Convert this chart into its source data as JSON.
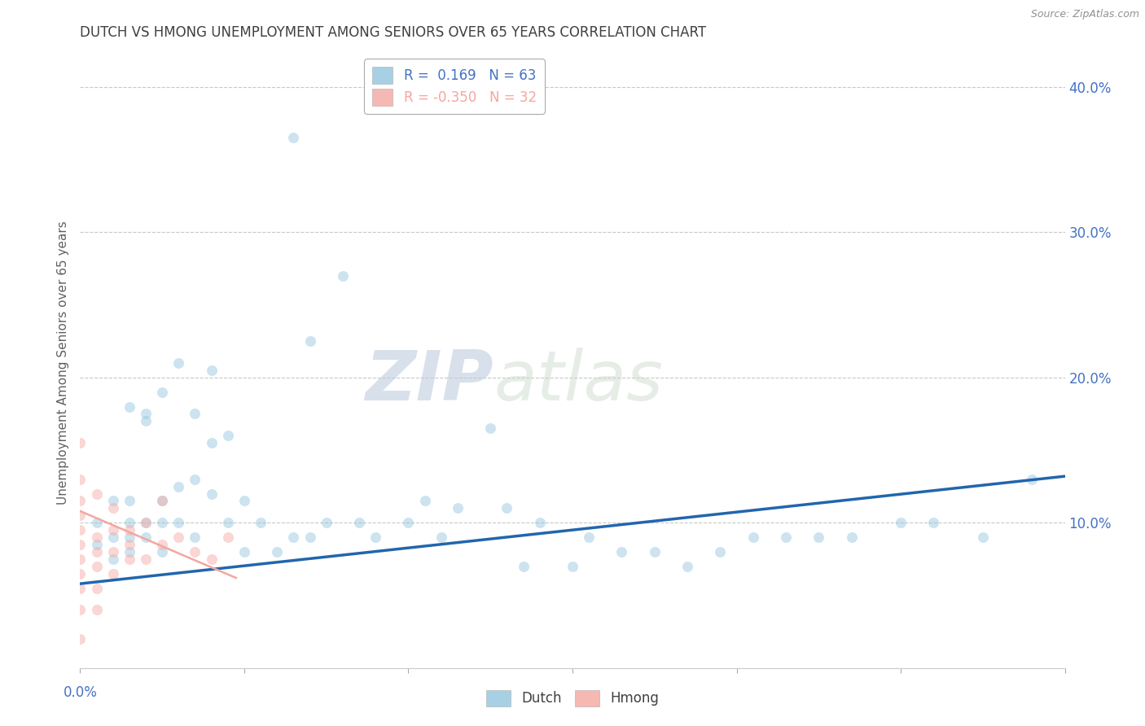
{
  "title": "DUTCH VS HMONG UNEMPLOYMENT AMONG SENIORS OVER 65 YEARS CORRELATION CHART",
  "source": "Source: ZipAtlas.com",
  "ylabel": "Unemployment Among Seniors over 65 years",
  "xlim": [
    0.0,
    0.6
  ],
  "ylim": [
    0.0,
    0.42
  ],
  "yticks": [
    0.0,
    0.1,
    0.2,
    0.3,
    0.4
  ],
  "ytick_labels": [
    "",
    "10.0%",
    "20.0%",
    "30.0%",
    "40.0%"
  ],
  "xticks": [
    0.0,
    0.1,
    0.2,
    0.3,
    0.4,
    0.5,
    0.6
  ],
  "legend_dutch_R": "0.169",
  "legend_dutch_N": "63",
  "legend_hmong_R": "-0.350",
  "legend_hmong_N": "32",
  "dutch_color": "#92c5de",
  "hmong_color": "#f4a6a0",
  "dutch_line_color": "#2166ac",
  "hmong_line_color": "#f4a6a0",
  "watermark_zip": "ZIP",
  "watermark_atlas": "atlas",
  "dutch_points_x": [
    0.01,
    0.01,
    0.02,
    0.02,
    0.02,
    0.03,
    0.03,
    0.03,
    0.03,
    0.04,
    0.04,
    0.04,
    0.05,
    0.05,
    0.05,
    0.06,
    0.06,
    0.07,
    0.07,
    0.08,
    0.08,
    0.09,
    0.1,
    0.1,
    0.11,
    0.12,
    0.13,
    0.13,
    0.14,
    0.14,
    0.15,
    0.16,
    0.17,
    0.18,
    0.2,
    0.21,
    0.22,
    0.23,
    0.25,
    0.26,
    0.27,
    0.28,
    0.3,
    0.31,
    0.33,
    0.35,
    0.37,
    0.39,
    0.41,
    0.43,
    0.45,
    0.47,
    0.5,
    0.52,
    0.55,
    0.58,
    0.03,
    0.04,
    0.05,
    0.06,
    0.07,
    0.08,
    0.09
  ],
  "dutch_points_y": [
    0.085,
    0.1,
    0.075,
    0.09,
    0.115,
    0.08,
    0.09,
    0.1,
    0.115,
    0.09,
    0.1,
    0.175,
    0.08,
    0.1,
    0.115,
    0.1,
    0.125,
    0.09,
    0.13,
    0.12,
    0.205,
    0.1,
    0.08,
    0.115,
    0.1,
    0.08,
    0.09,
    0.365,
    0.09,
    0.225,
    0.1,
    0.27,
    0.1,
    0.09,
    0.1,
    0.115,
    0.09,
    0.11,
    0.165,
    0.11,
    0.07,
    0.1,
    0.07,
    0.09,
    0.08,
    0.08,
    0.07,
    0.08,
    0.09,
    0.09,
    0.09,
    0.09,
    0.1,
    0.1,
    0.09,
    0.13,
    0.18,
    0.17,
    0.19,
    0.21,
    0.175,
    0.155,
    0.16
  ],
  "hmong_points_x": [
    0.0,
    0.0,
    0.0,
    0.0,
    0.0,
    0.0,
    0.0,
    0.0,
    0.0,
    0.0,
    0.01,
    0.01,
    0.01,
    0.01,
    0.01,
    0.02,
    0.02,
    0.02,
    0.02,
    0.03,
    0.03,
    0.03,
    0.04,
    0.04,
    0.05,
    0.05,
    0.06,
    0.07,
    0.08,
    0.09,
    0.0,
    0.01
  ],
  "hmong_points_y": [
    0.02,
    0.04,
    0.055,
    0.065,
    0.075,
    0.085,
    0.095,
    0.105,
    0.115,
    0.13,
    0.055,
    0.07,
    0.08,
    0.09,
    0.12,
    0.065,
    0.08,
    0.095,
    0.11,
    0.075,
    0.085,
    0.095,
    0.075,
    0.1,
    0.085,
    0.115,
    0.09,
    0.08,
    0.075,
    0.09,
    0.155,
    0.04
  ],
  "dutch_trend_x": [
    0.0,
    0.6
  ],
  "dutch_trend_y": [
    0.058,
    0.132
  ],
  "hmong_trend_x": [
    0.0,
    0.095
  ],
  "hmong_trend_y": [
    0.108,
    0.062
  ],
  "marker_size": 80,
  "marker_alpha": 0.45,
  "bg_color": "#ffffff",
  "grid_color": "#c8c8c8",
  "title_color": "#404040",
  "axis_label_color": "#4472c4",
  "ylabel_color": "#606060"
}
